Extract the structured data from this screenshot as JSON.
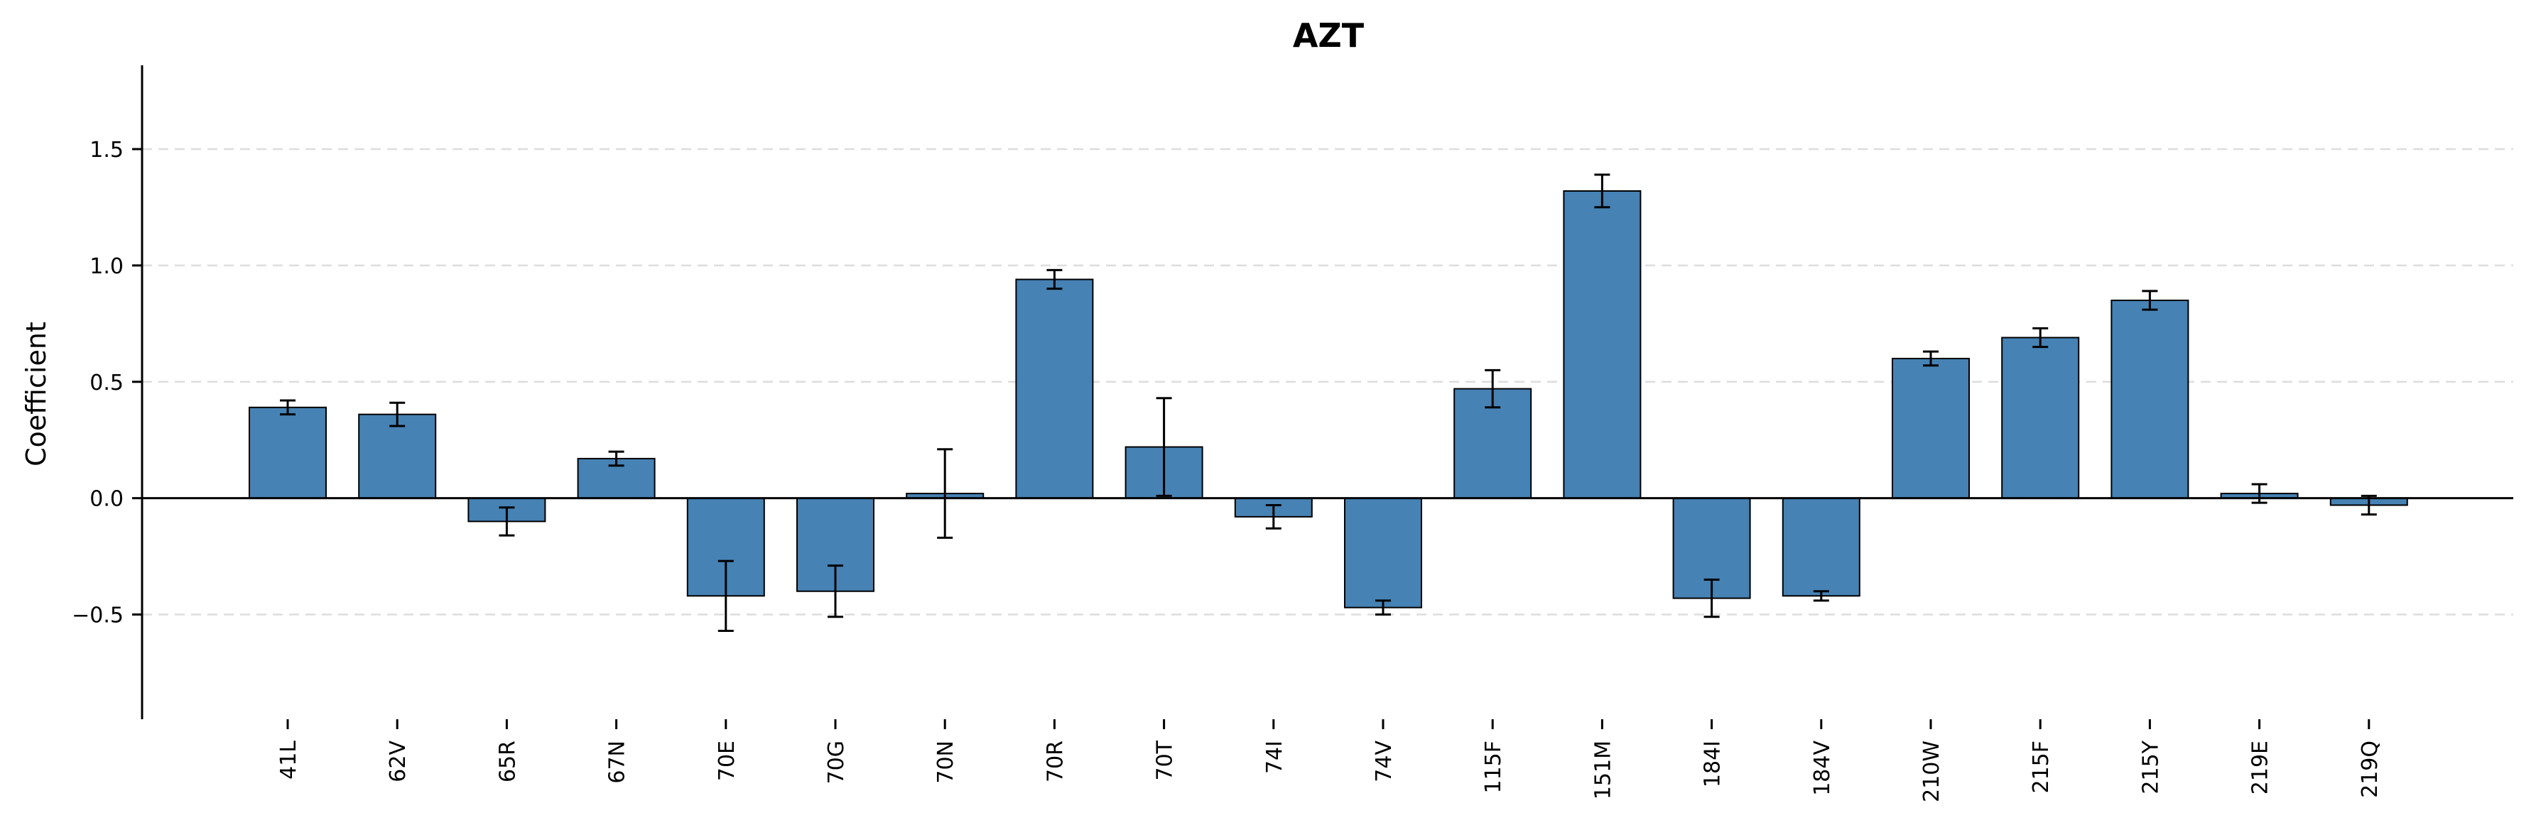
{
  "chart_data": {
    "type": "bar",
    "title": "AZT",
    "xlabel": "",
    "ylabel": "Coefficient",
    "ylim": [
      -0.95,
      1.86
    ],
    "yticks": [
      -0.5,
      0.0,
      0.5,
      1.0,
      1.5
    ],
    "ytick_labels": [
      "−0.5",
      "0.0",
      "0.5",
      "1.0",
      "1.5"
    ],
    "grid": "horizontal dashed",
    "zero_line": true,
    "categories": [
      "41L",
      "62V",
      "65R",
      "67N",
      "70E",
      "70G",
      "70N",
      "70R",
      "70T",
      "74I",
      "74V",
      "115F",
      "151M",
      "184I",
      "184V",
      "210W",
      "215F",
      "215Y",
      "219E",
      "219Q"
    ],
    "values": [
      0.39,
      0.36,
      -0.1,
      0.17,
      -0.42,
      -0.4,
      0.02,
      0.94,
      0.22,
      -0.08,
      -0.47,
      0.47,
      1.32,
      -0.43,
      -0.42,
      0.6,
      0.69,
      0.85,
      0.02,
      -0.03
    ],
    "error": [
      0.03,
      0.05,
      0.06,
      0.03,
      0.15,
      0.11,
      0.19,
      0.04,
      0.21,
      0.05,
      0.03,
      0.08,
      0.07,
      0.08,
      0.02,
      0.03,
      0.04,
      0.04,
      0.04,
      0.04
    ],
    "colors": {
      "bar": "#4682b4",
      "edge": "#000000",
      "error": "#000000",
      "grid": "#dddddd"
    }
  }
}
